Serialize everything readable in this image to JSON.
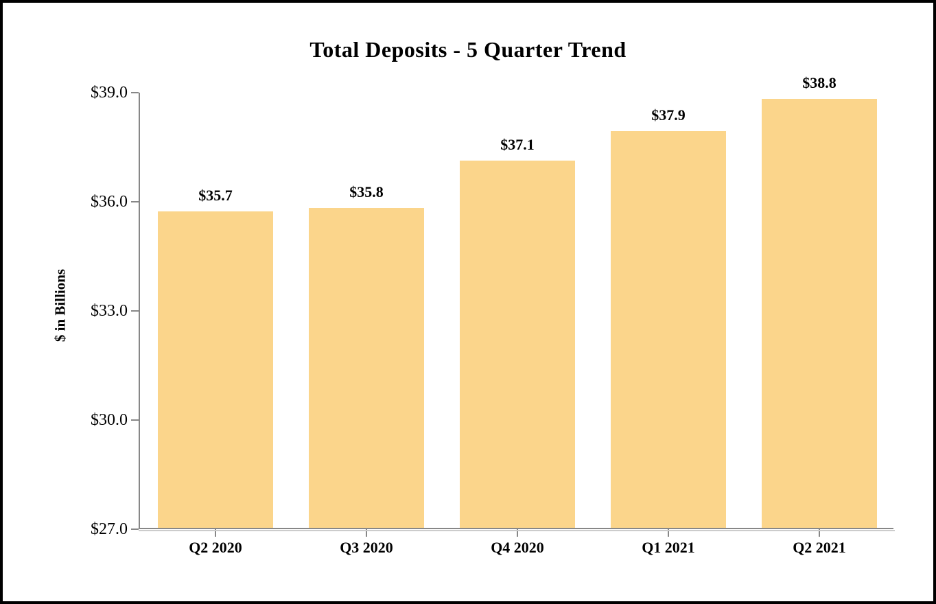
{
  "chart_data": {
    "type": "bar",
    "title": "Total Deposits - 5 Quarter Trend",
    "xlabel": "",
    "ylabel": "$ in Billions",
    "categories": [
      "Q2 2020",
      "Q3 2020",
      "Q4 2020",
      "Q1 2021",
      "Q2 2021"
    ],
    "values": [
      35.7,
      35.8,
      37.1,
      37.9,
      38.8
    ],
    "value_labels": [
      "$35.7",
      "$35.8",
      "$37.1",
      "$37.9",
      "$38.8"
    ],
    "ylim": [
      27,
      39
    ],
    "ytick_step": 3,
    "ytick_labels": [
      "$27.0",
      "$30.0",
      "$33.0",
      "$36.0",
      "$39.0"
    ],
    "grid": false,
    "legend": false,
    "bar_color": "#FBD58B",
    "axis_color": "#878787",
    "text_color": "#000000"
  }
}
